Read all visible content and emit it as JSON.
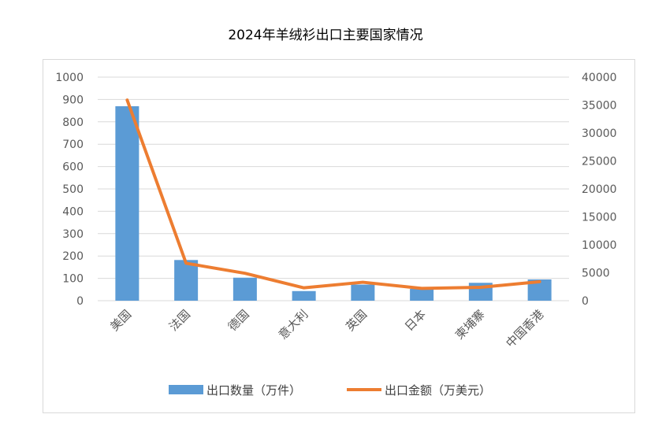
{
  "chart_data": {
    "type": "bar+line",
    "title": "2024年羊绒衫出口主要国家情况",
    "categories": [
      "美国",
      "法国",
      "德国",
      "意大利",
      "英国",
      "日本",
      "柬埔寨",
      "中国香港"
    ],
    "series": [
      {
        "name": "出口数量（万件）",
        "type": "bar",
        "axis": "left",
        "color": "#5b9bd5",
        "values": [
          870,
          182,
          103,
          43,
          72,
          53,
          80,
          95
        ]
      },
      {
        "name": "出口金额（万美元）",
        "type": "line",
        "axis": "right",
        "color": "#ed7d31",
        "values": [
          35900,
          6700,
          4900,
          2300,
          3300,
          2200,
          2400,
          3400
        ]
      }
    ],
    "y_left": {
      "min": 0,
      "max": 1000,
      "ticks": [
        "0",
        "100",
        "200",
        "300",
        "400",
        "500",
        "600",
        "700",
        "800",
        "900",
        "1000"
      ]
    },
    "y_right": {
      "min": 0,
      "max": 40000,
      "ticks": [
        "0",
        "5000",
        "10000",
        "15000",
        "20000",
        "25000",
        "30000",
        "35000",
        "40000"
      ]
    },
    "grid": true,
    "legend_position": "bottom"
  }
}
